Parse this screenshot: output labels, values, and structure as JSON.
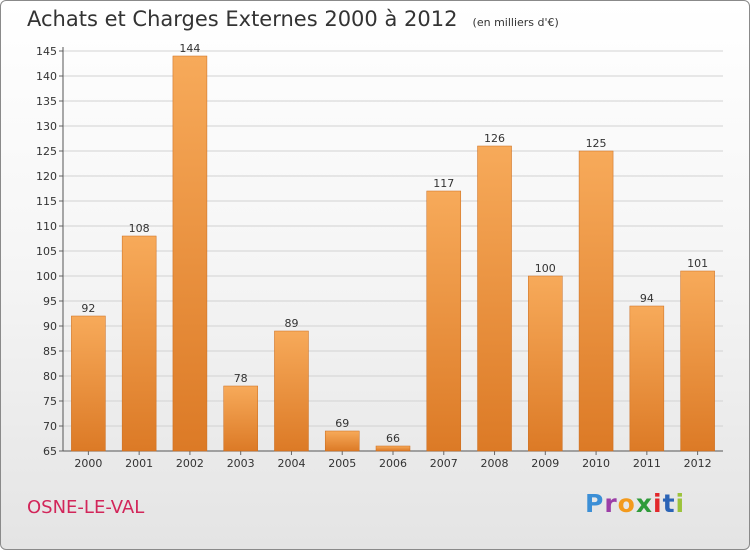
{
  "title": "Achats et Charges Externes 2000 à 2012",
  "subtitle": "(en milliers d'€)",
  "location": "OSNE-LE-VAL",
  "brand": {
    "letters": [
      "P",
      "r",
      "o",
      "x",
      "i",
      "t",
      "i"
    ]
  },
  "colors": {
    "bar_light": "#f7aa5a",
    "bar_dark": "#dc7a26",
    "city": "#d2265a"
  },
  "chart_data": {
    "type": "bar",
    "title": "Achats et Charges Externes 2000 à 2012",
    "subtitle": "(en milliers d'€)",
    "categories": [
      "2000",
      "2001",
      "2002",
      "2003",
      "2004",
      "2005",
      "2006",
      "2007",
      "2008",
      "2009",
      "2010",
      "2011",
      "2012"
    ],
    "values": [
      92,
      108,
      144,
      78,
      89,
      69,
      66,
      117,
      126,
      100,
      125,
      94,
      101
    ],
    "ylim": [
      65,
      145
    ],
    "yticks": [
      65,
      70,
      75,
      80,
      85,
      90,
      95,
      100,
      105,
      110,
      115,
      120,
      125,
      130,
      135,
      140,
      145
    ],
    "grid": true,
    "data_labels": true
  }
}
